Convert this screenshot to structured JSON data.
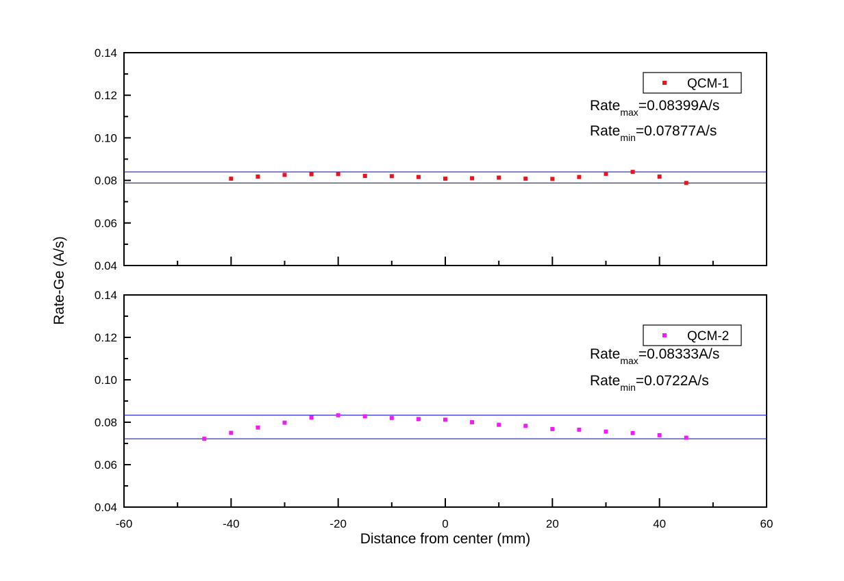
{
  "chart_data": {
    "type": "scatter",
    "xlabel": "Distance from center (mm)",
    "ylabel": "Rate-Ge (A/s)",
    "xlim": [
      -60,
      60
    ],
    "x_ticks": [
      -60,
      -40,
      -20,
      0,
      20,
      40,
      60
    ],
    "x_tick_labels": [
      "-60",
      "-40",
      "-20",
      "0",
      "20",
      "40",
      "60"
    ],
    "ylim": [
      0.04,
      0.14
    ],
    "y_ticks": [
      0.04,
      0.06,
      0.08,
      0.1,
      0.12,
      0.14
    ],
    "y_tick_labels": [
      "0.04",
      "0.06",
      "0.08",
      "0.10",
      "0.12",
      "0.14"
    ],
    "grid": false,
    "panels": [
      {
        "legend": "QCM-1",
        "legend_position": "top-right",
        "color": "#e8141e",
        "line_color": "#1a1ad0",
        "annotations": [
          {
            "base": "Rate",
            "sub": "max",
            "rest": "=0.08399A/s"
          },
          {
            "base": "Rate",
            "sub": "min",
            "rest": "=0.07877A/s"
          }
        ],
        "hlines": [
          0.08399,
          0.07877
        ],
        "x": [
          -40,
          -35,
          -30,
          -25,
          -20,
          -15,
          -10,
          -5,
          0,
          5,
          10,
          15,
          20,
          25,
          30,
          35,
          40,
          45
        ],
        "y": [
          0.0808,
          0.0818,
          0.0826,
          0.0829,
          0.083,
          0.0821,
          0.082,
          0.0816,
          0.0808,
          0.081,
          0.0813,
          0.0808,
          0.0807,
          0.0816,
          0.0831,
          0.084,
          0.0818,
          0.0788
        ]
      },
      {
        "legend": "QCM-2",
        "legend_position": "top-right",
        "color": "#ee1ef0",
        "line_color": "#1a1ad0",
        "annotations": [
          {
            "base": "Rate",
            "sub": "max",
            "rest": "=0.08333A/s"
          },
          {
            "base": "Rate",
            "sub": "min",
            "rest": "=0.0722A/s"
          }
        ],
        "hlines": [
          0.08333,
          0.0722
        ],
        "x": [
          -45,
          -40,
          -35,
          -30,
          -25,
          -20,
          -15,
          -10,
          -5,
          0,
          5,
          10,
          15,
          20,
          25,
          30,
          35,
          40,
          45
        ],
        "y": [
          0.0722,
          0.075,
          0.0775,
          0.0798,
          0.0822,
          0.0833,
          0.0828,
          0.082,
          0.0815,
          0.0812,
          0.08,
          0.0788,
          0.0783,
          0.0768,
          0.0765,
          0.0756,
          0.0749,
          0.0739,
          0.0727
        ]
      }
    ]
  }
}
